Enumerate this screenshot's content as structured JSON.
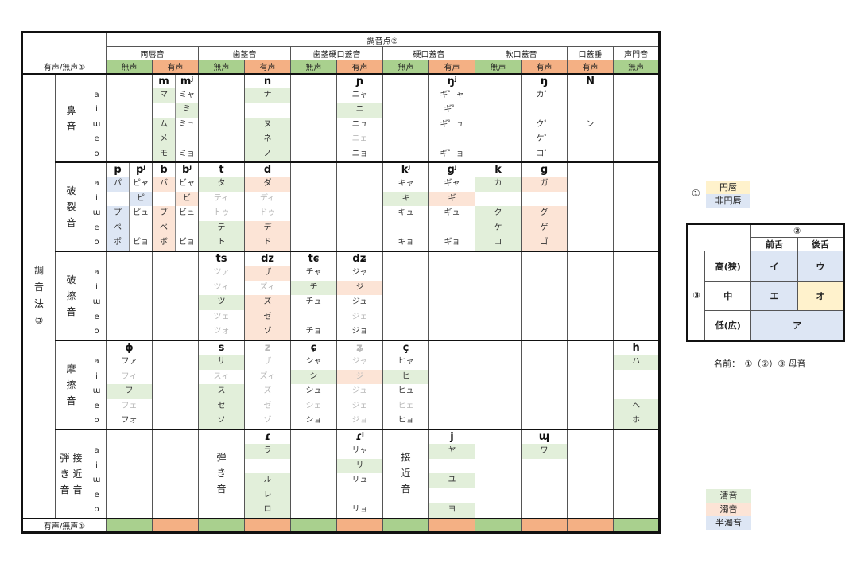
{
  "header": {
    "place_title": "調音点②",
    "places": [
      "両唇音",
      "歯茎音",
      "歯茎硬口蓋音",
      "硬口蓋音",
      "軟口蓋音",
      "口蓋垂",
      "声門音"
    ],
    "voicing_label": "有声/無声①",
    "voiceless": "無声",
    "voiced": "有声",
    "manner_title": "調音法③"
  },
  "manners": [
    {
      "label": "鼻音",
      "vowels": [
        "a",
        "i",
        "ɯ",
        "e",
        "o"
      ]
    },
    {
      "label": "破裂音",
      "vowels": [
        "a",
        "i",
        "ɯ",
        "e",
        "o"
      ]
    },
    {
      "label": "破擦音",
      "vowels": [
        "a",
        "i",
        "ɯ",
        "e",
        "o"
      ]
    },
    {
      "label": "摩擦音",
      "vowels": [
        "a",
        "i",
        "ɯ",
        "e",
        "o"
      ]
    },
    {
      "label": "弾き音 / 接近音",
      "left": [
        "弾",
        "き",
        "音"
      ],
      "right": [
        "接",
        "近",
        "音"
      ],
      "vowels": [
        "a",
        "i",
        "ɯ",
        "e",
        "o"
      ]
    }
  ],
  "cells": {
    "r0c1": [
      {
        "ipa": "m",
        "k": [
          "マ",
          "",
          "ム",
          "メ",
          "モ"
        ]
      },
      {
        "ipa": "mʲ",
        "k": [
          "ミャ",
          "ミ",
          "ミュ",
          "",
          "ミョ"
        ]
      }
    ],
    "r0c3": [
      {
        "ipa": "n",
        "k": [
          "ナ",
          "",
          "ヌ",
          "ネ",
          "ノ"
        ]
      }
    ],
    "r0c5": [
      {
        "ipa": "ɲ",
        "k": [
          "ニャ",
          "ニ",
          "ニュ",
          "ニェ",
          "ニョ"
        ]
      }
    ],
    "r0c7": [
      {
        "ipa": "ŋʲ",
        "k": [
          "ギ゜ャ",
          "ギ゜",
          "ギ゜ュ",
          "",
          "ギ゜ョ"
        ]
      }
    ],
    "r0c9": [
      {
        "ipa": "ŋ",
        "k": [
          "カ゜",
          "",
          "ク゜",
          "ケ゜",
          "コ゜"
        ]
      }
    ],
    "r0c10": [
      {
        "ipa": "N",
        "k": [
          "",
          "",
          "ン",
          "",
          ""
        ]
      }
    ],
    "r1c0": [
      {
        "ipa": "p",
        "k": [
          "パ",
          "",
          "プ",
          "ペ",
          "ポ"
        ]
      },
      {
        "ipa": "pʲ",
        "k": [
          "ピャ",
          "ピ",
          "ピュ",
          "",
          "ピョ"
        ]
      }
    ],
    "r1c1": [
      {
        "ipa": "b",
        "k": [
          "バ",
          "",
          "ブ",
          "ベ",
          "ボ"
        ]
      },
      {
        "ipa": "bʲ",
        "k": [
          "ビャ",
          "ビ",
          "ビュ",
          "",
          "ビョ"
        ]
      }
    ],
    "r1c2": [
      {
        "ipa": "t",
        "k": [
          "タ",
          "ティ",
          "トゥ",
          "テ",
          "ト"
        ]
      }
    ],
    "r1c3": [
      {
        "ipa": "d",
        "k": [
          "ダ",
          "ディ",
          "ドゥ",
          "デ",
          "ド"
        ]
      }
    ],
    "r1c6": [
      {
        "ipa": "kʲ",
        "k": [
          "キャ",
          "キ",
          "キュ",
          "",
          "キョ"
        ]
      }
    ],
    "r1c7": [
      {
        "ipa": "gʲ",
        "k": [
          "ギャ",
          "ギ",
          "ギュ",
          "",
          "ギョ"
        ]
      }
    ],
    "r1c8": [
      {
        "ipa": "k",
        "k": [
          "カ",
          "",
          "ク",
          "ケ",
          "コ"
        ]
      }
    ],
    "r1c9": [
      {
        "ipa": "g",
        "k": [
          "ガ",
          "",
          "グ",
          "ゲ",
          "ゴ"
        ]
      }
    ],
    "r2c2": [
      {
        "ipa": "ts",
        "k": [
          "ツァ",
          "ツィ",
          "ツ",
          "ツェ",
          "ツォ"
        ]
      }
    ],
    "r2c3": [
      {
        "ipa": "dz",
        "k": [
          "ザ",
          "ズィ",
          "ズ",
          "ゼ",
          "ゾ"
        ]
      }
    ],
    "r2c4": [
      {
        "ipa": "tɕ",
        "k": [
          "チャ",
          "チ",
          "チュ",
          "",
          "チョ"
        ]
      }
    ],
    "r2c5": [
      {
        "ipa": "dʑ",
        "k": [
          "ジャ",
          "ジ",
          "ジュ",
          "ジェ",
          "ジョ"
        ]
      }
    ],
    "r3c0": [
      {
        "ipa": "ɸ",
        "k": [
          "ファ",
          "フィ",
          "フ",
          "フェ",
          "フォ"
        ]
      }
    ],
    "r3c2": [
      {
        "ipa": "s",
        "k": [
          "サ",
          "スィ",
          "ス",
          "セ",
          "ソ"
        ]
      }
    ],
    "r3c3": [
      {
        "ipa": "z",
        "k": [
          "ザ",
          "ズィ",
          "ズ",
          "ゼ",
          "ゾ"
        ]
      }
    ],
    "r3c4": [
      {
        "ipa": "ɕ",
        "k": [
          "シャ",
          "シ",
          "シュ",
          "シェ",
          "ショ"
        ]
      }
    ],
    "r3c5": [
      {
        "ipa": "ʑ",
        "k": [
          "ジャ",
          "ジ",
          "ジュ",
          "ジェ",
          "ジョ"
        ]
      }
    ],
    "r3c6": [
      {
        "ipa": "ç",
        "k": [
          "ヒャ",
          "ヒ",
          "ヒュ",
          "ヒェ",
          "ヒョ"
        ]
      }
    ],
    "r3c11": [
      {
        "ipa": "h",
        "k": [
          "ハ",
          "",
          "",
          "ヘ",
          "ホ"
        ]
      }
    ],
    "r4c3": [
      {
        "ipa": "ɾ",
        "k": [
          "ラ",
          "",
          "ル",
          "レ",
          "ロ"
        ]
      }
    ],
    "r4c5": [
      {
        "ipa": "ɾʲ",
        "k": [
          "リャ",
          "リ",
          "リュ",
          "",
          "リョ"
        ]
      }
    ],
    "r4c7": [
      {
        "ipa": "j",
        "k": [
          "ヤ",
          "",
          "ユ",
          "",
          "ヨ"
        ]
      }
    ],
    "r4c9": [
      {
        "ipa": "ɰ",
        "k": [
          "ワ",
          "",
          "",
          "",
          ""
        ]
      }
    ]
  },
  "legend_rounding": {
    "num": "①",
    "rounded": "円唇",
    "unrounded": "非円唇"
  },
  "vowel_chart": {
    "col_title": "②",
    "front": "前舌",
    "back": "後舌",
    "row_title": "③",
    "high": "高(狭)",
    "mid": "中",
    "low": "低(広)",
    "high_front": "イ",
    "high_back": "ウ",
    "mid_front": "エ",
    "mid_back": "オ",
    "low_all": "ア"
  },
  "name_formula": "名前：　①（②）③ 母音",
  "legend_voicing": {
    "plain": "清音",
    "voiced": "濁音",
    "semi_voiced": "半濁音"
  },
  "colors": {
    "voiceless_header": "#a9d08e",
    "voiced_header": "#f4b084",
    "plain": "#e2efda",
    "voiced": "#fce4d6",
    "semi_voiced": "#dde6f4",
    "rounded": "#fff2cc",
    "unrounded": "#dde6f4"
  }
}
